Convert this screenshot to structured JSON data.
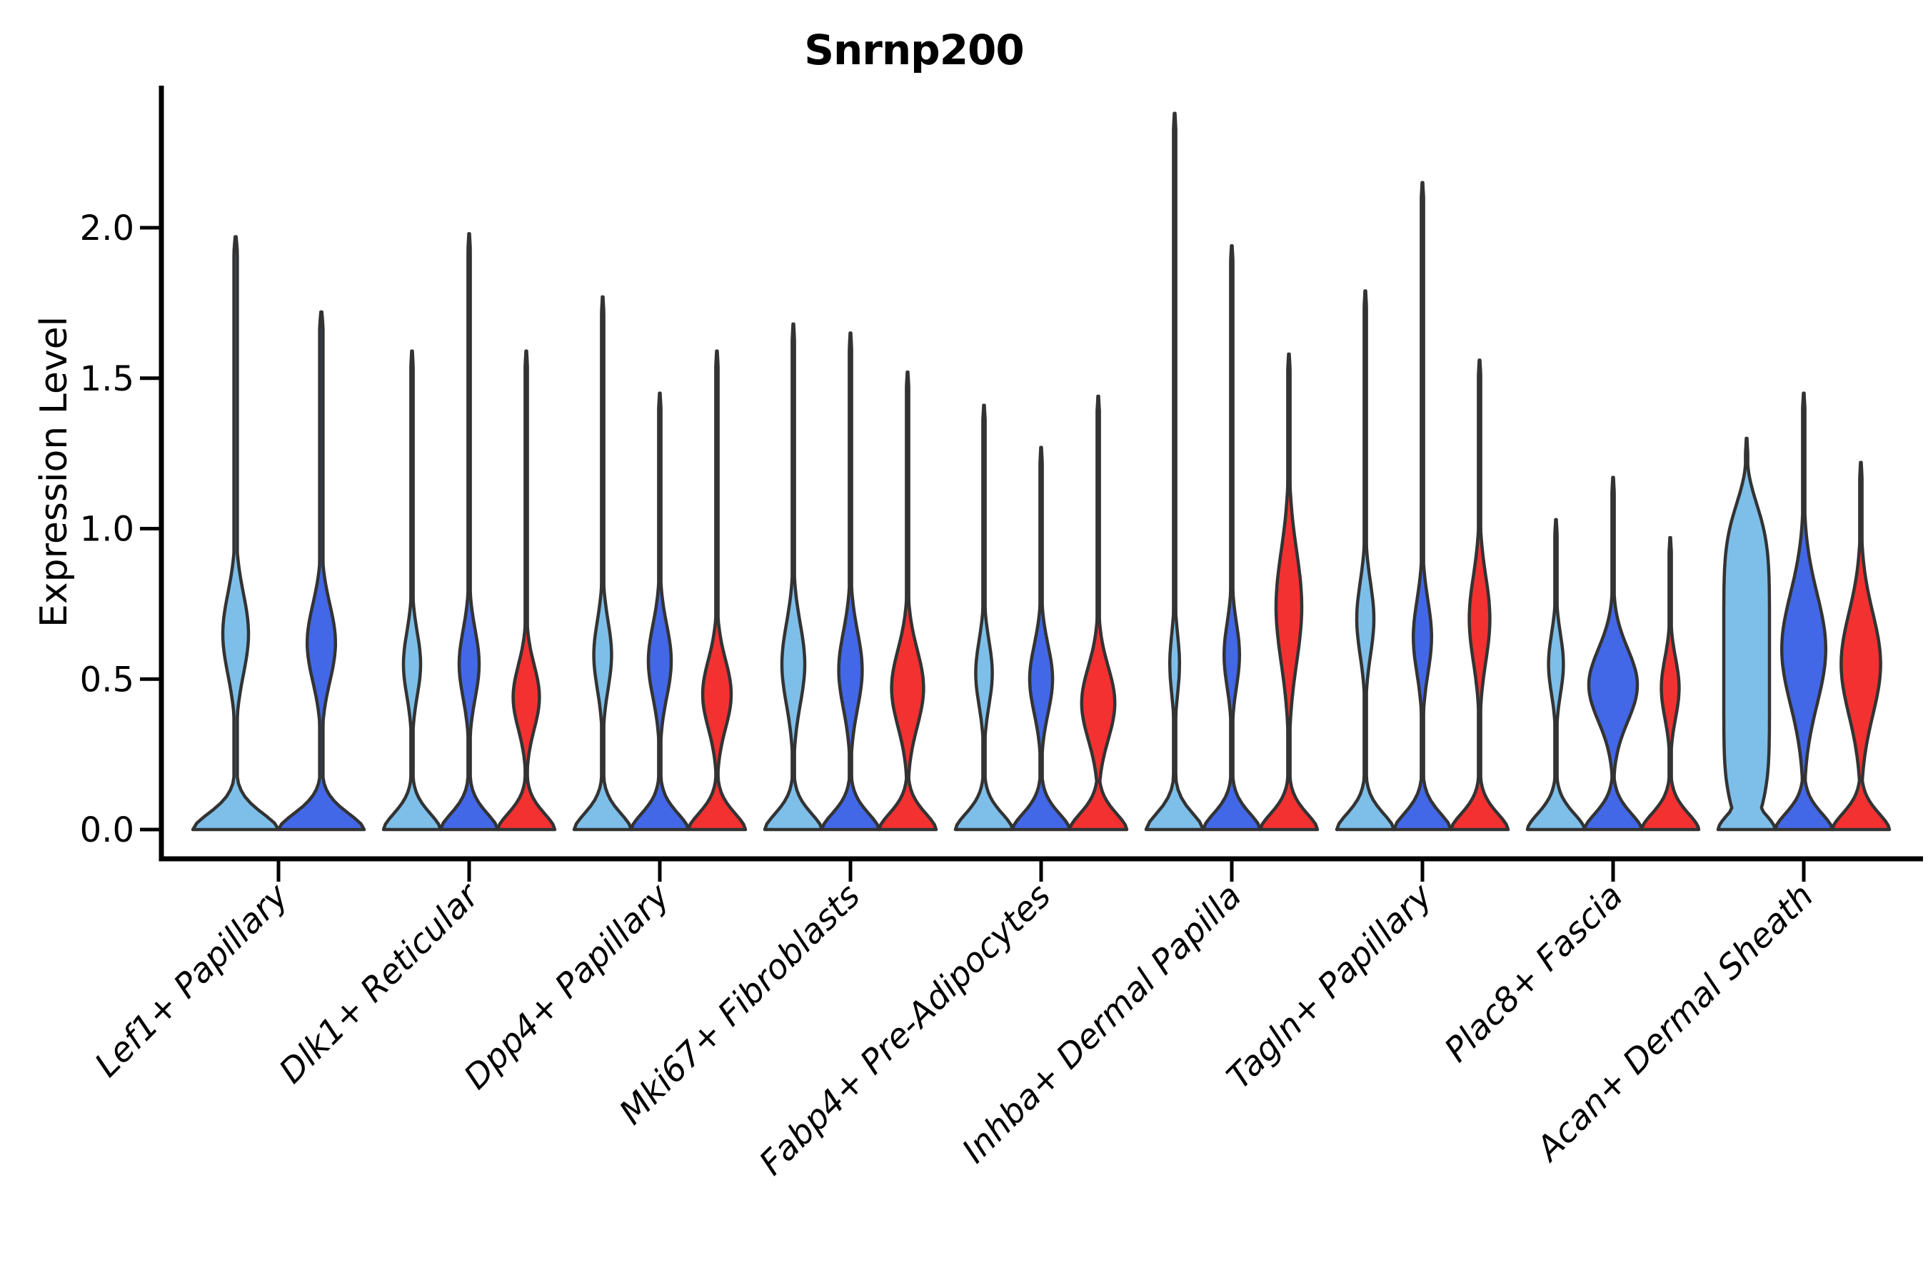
{
  "chart_data": {
    "type": "violin",
    "title": "Snrnp200",
    "ylabel": "Expression Level",
    "xlabel": "",
    "ylim": [
      0.0,
      2.47
    ],
    "grid": false,
    "legend_position": "none",
    "yticks": [
      {
        "label": "0.0",
        "value": 0.0
      },
      {
        "label": "0.5",
        "value": 0.5
      },
      {
        "label": "1.0",
        "value": 1.0
      },
      {
        "label": "1.5",
        "value": 1.5
      },
      {
        "label": "2.0",
        "value": 2.0
      }
    ],
    "categories": [
      "Lef1+ Papillary",
      "Dlk1+ Reticular",
      "Dpp4+ Papillary",
      "Mki67+ Fibroblasts",
      "Fabp4+ Pre-Adipocytes",
      "Inhba+ Dermal Papilla",
      "Tagln+ Papillary",
      "Plac8+ Fascia",
      "Acan+ Dermal Sheath"
    ],
    "series_colors": [
      "#7DBFE9",
      "#4268E8",
      "#F33131"
    ],
    "edge_color": "#333333",
    "violins": [
      {
        "category_index": 0,
        "series": 0,
        "dx": -60,
        "width": 120,
        "max": 1.97,
        "bulge": {
          "center": 0.65,
          "sigma": 0.19,
          "halfwidth": 0.3
        },
        "profile": "gauss"
      },
      {
        "category_index": 0,
        "series": 1,
        "dx": 60,
        "width": 120,
        "max": 1.72,
        "bulge": {
          "center": 0.62,
          "sigma": 0.18,
          "halfwidth": 0.33
        },
        "profile": "gauss"
      },
      {
        "category_index": 1,
        "series": 0,
        "dx": -80,
        "width": 80,
        "max": 1.59,
        "bulge": {
          "center": 0.55,
          "sigma": 0.15,
          "halfwidth": 0.3
        },
        "profile": "gauss"
      },
      {
        "category_index": 1,
        "series": 1,
        "dx": 0,
        "width": 80,
        "max": 1.98,
        "bulge": {
          "center": 0.55,
          "sigma": 0.16,
          "halfwidth": 0.35
        },
        "profile": "gauss"
      },
      {
        "category_index": 1,
        "series": 2,
        "dx": 80,
        "width": 80,
        "max": 1.59,
        "bulge": {
          "center": 0.44,
          "sigma": 0.15,
          "halfwidth": 0.46
        },
        "profile": "gauss"
      },
      {
        "category_index": 2,
        "series": 0,
        "dx": -80,
        "width": 80,
        "max": 1.77,
        "bulge": {
          "center": 0.58,
          "sigma": 0.16,
          "halfwidth": 0.31
        },
        "profile": "gauss"
      },
      {
        "category_index": 2,
        "series": 1,
        "dx": 0,
        "width": 80,
        "max": 1.45,
        "bulge": {
          "center": 0.56,
          "sigma": 0.17,
          "halfwidth": 0.4
        },
        "profile": "gauss"
      },
      {
        "category_index": 2,
        "series": 2,
        "dx": 80,
        "width": 80,
        "max": 1.59,
        "bulge": {
          "center": 0.45,
          "sigma": 0.16,
          "halfwidth": 0.5
        },
        "profile": "gauss"
      },
      {
        "category_index": 3,
        "series": 0,
        "dx": -80,
        "width": 80,
        "max": 1.68,
        "bulge": {
          "center": 0.55,
          "sigma": 0.19,
          "halfwidth": 0.4
        },
        "profile": "gauss"
      },
      {
        "category_index": 3,
        "series": 1,
        "dx": 0,
        "width": 80,
        "max": 1.65,
        "bulge": {
          "center": 0.53,
          "sigma": 0.18,
          "halfwidth": 0.41
        },
        "profile": "gauss"
      },
      {
        "category_index": 3,
        "series": 2,
        "dx": 80,
        "width": 80,
        "max": 1.52,
        "bulge": {
          "center": 0.47,
          "sigma": 0.18,
          "halfwidth": 0.56
        },
        "profile": "gauss"
      },
      {
        "category_index": 4,
        "series": 0,
        "dx": -80,
        "width": 80,
        "max": 1.41,
        "bulge": {
          "center": 0.52,
          "sigma": 0.15,
          "halfwidth": 0.29
        },
        "profile": "gauss"
      },
      {
        "category_index": 4,
        "series": 1,
        "dx": 0,
        "width": 80,
        "max": 1.27,
        "bulge": {
          "center": 0.5,
          "sigma": 0.16,
          "halfwidth": 0.4
        },
        "profile": "gauss"
      },
      {
        "category_index": 4,
        "series": 2,
        "dx": 80,
        "width": 80,
        "max": 1.44,
        "bulge": {
          "center": 0.42,
          "sigma": 0.17,
          "halfwidth": 0.58
        },
        "profile": "gauss"
      },
      {
        "category_index": 5,
        "series": 0,
        "dx": -80,
        "width": 80,
        "max": 2.38,
        "bulge": {
          "center": 0.55,
          "sigma": 0.14,
          "halfwidth": 0.17
        },
        "profile": "gauss"
      },
      {
        "category_index": 5,
        "series": 1,
        "dx": 0,
        "width": 80,
        "max": 1.94,
        "bulge": {
          "center": 0.58,
          "sigma": 0.15,
          "halfwidth": 0.27
        },
        "profile": "gauss"
      },
      {
        "category_index": 5,
        "series": 2,
        "dx": 80,
        "width": 80,
        "max": 1.58,
        "bulge": {
          "center": 0.74,
          "sigma": 0.26,
          "halfwidth": 0.45
        },
        "profile": "gauss"
      },
      {
        "category_index": 6,
        "series": 0,
        "dx": -80,
        "width": 80,
        "max": 1.79,
        "bulge": {
          "center": 0.7,
          "sigma": 0.17,
          "halfwidth": 0.3
        },
        "profile": "gauss"
      },
      {
        "category_index": 6,
        "series": 1,
        "dx": 0,
        "width": 80,
        "max": 2.15,
        "bulge": {
          "center": 0.64,
          "sigma": 0.17,
          "halfwidth": 0.32
        },
        "profile": "gauss"
      },
      {
        "category_index": 6,
        "series": 2,
        "dx": 80,
        "width": 80,
        "max": 1.56,
        "bulge": {
          "center": 0.7,
          "sigma": 0.2,
          "halfwidth": 0.36
        },
        "profile": "gauss"
      },
      {
        "category_index": 7,
        "series": 0,
        "dx": -80,
        "width": 80,
        "max": 1.03,
        "bulge": {
          "center": 0.55,
          "sigma": 0.14,
          "halfwidth": 0.26
        },
        "profile": "gauss"
      },
      {
        "category_index": 7,
        "series": 1,
        "dx": 0,
        "width": 80,
        "max": 1.17,
        "bulge": {
          "center": 0.48,
          "sigma": 0.17,
          "halfwidth": 0.85
        },
        "profile": "gauss"
      },
      {
        "category_index": 7,
        "series": 2,
        "dx": 80,
        "width": 80,
        "max": 0.97,
        "bulge": {
          "center": 0.47,
          "sigma": 0.14,
          "halfwidth": 0.31
        },
        "profile": "gauss"
      },
      {
        "category_index": 8,
        "series": 0,
        "dx": -80,
        "width": 80,
        "max": 1.3,
        "bulge": {
          "center": 0.55,
          "sigma": 0.55,
          "halfwidth": 0.8
        },
        "profile": "column"
      },
      {
        "category_index": 8,
        "series": 1,
        "dx": 0,
        "width": 80,
        "max": 1.45,
        "bulge": {
          "center": 0.6,
          "sigma": 0.26,
          "halfwidth": 0.77
        },
        "profile": "gauss"
      },
      {
        "category_index": 8,
        "series": 2,
        "dx": 80,
        "width": 80,
        "max": 1.22,
        "bulge": {
          "center": 0.55,
          "sigma": 0.24,
          "halfwidth": 0.69
        },
        "profile": "gauss"
      }
    ]
  }
}
